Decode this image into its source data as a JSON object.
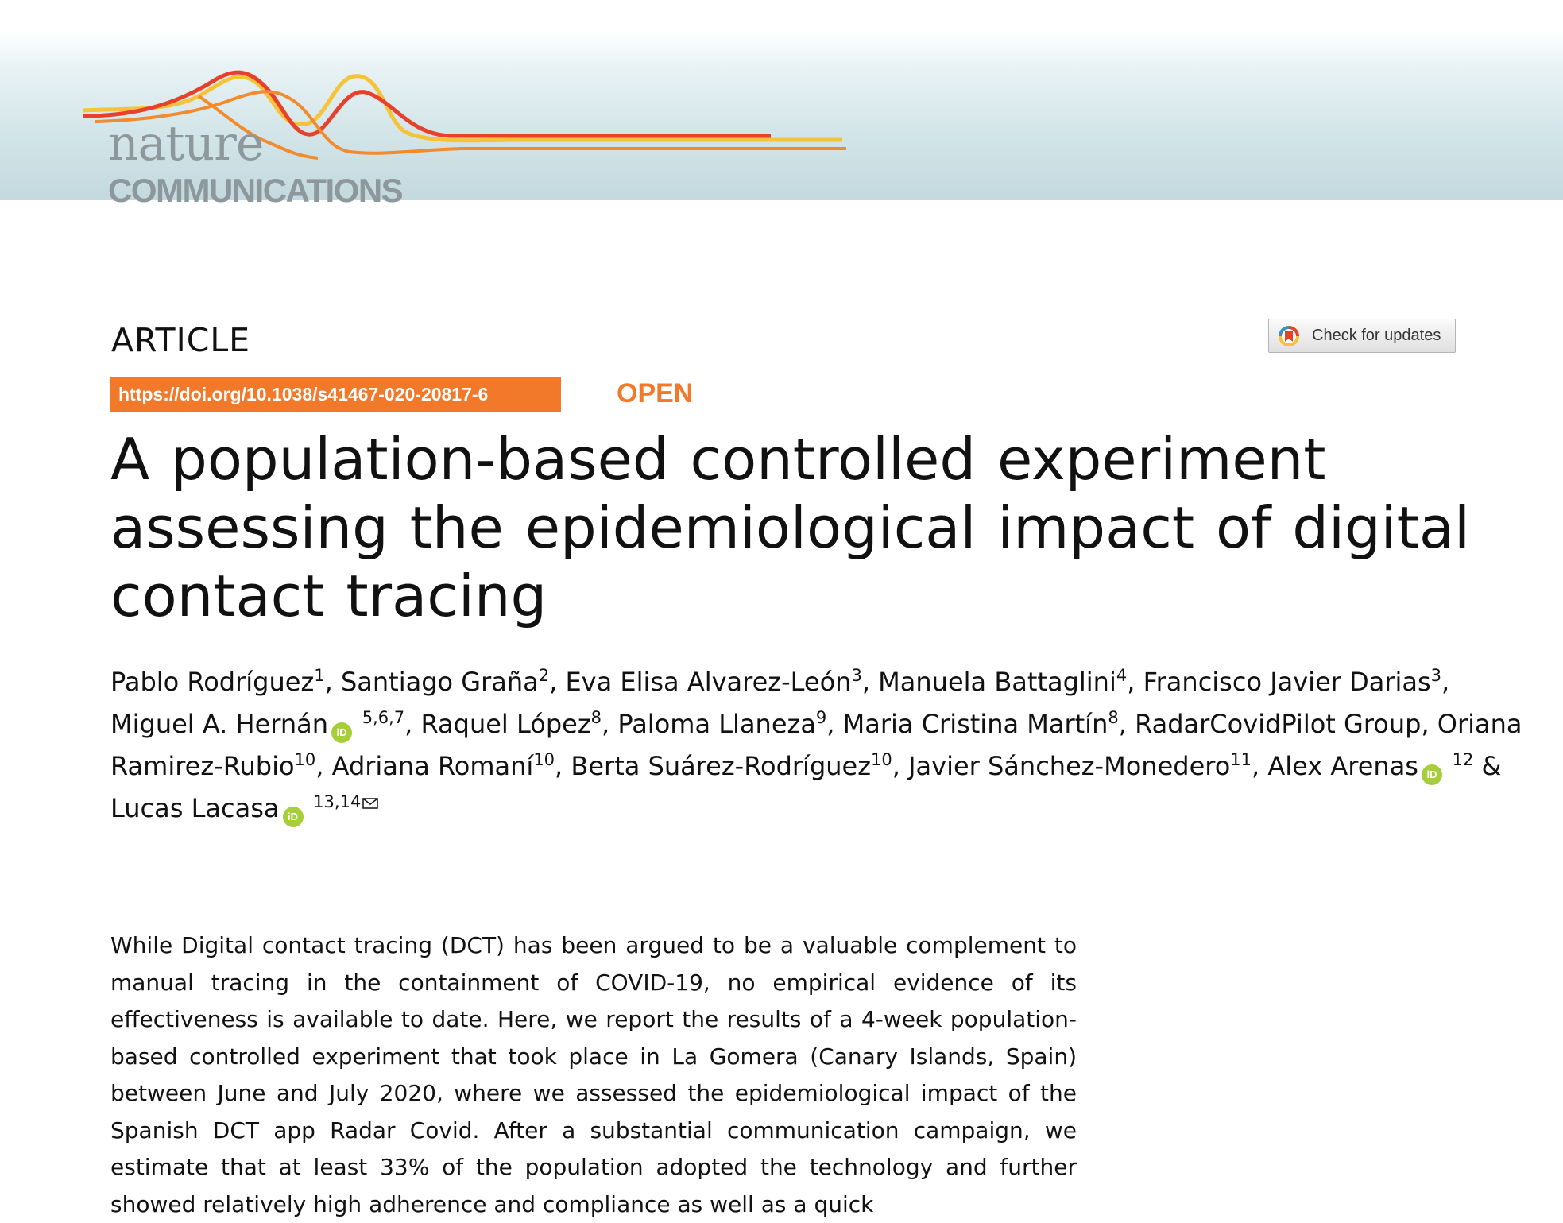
{
  "journal": {
    "name_line1": "nature",
    "name_line2": "COMMUNICATIONS"
  },
  "article_type": "ARTICLE",
  "check_updates_label": "Check for updates",
  "doi": "https://doi.org/10.1038/s41467-020-20817-6",
  "access_label": "OPEN",
  "title": "A population-based controlled experiment assessing the epidemiological impact of digital contact tracing",
  "authors": [
    {
      "name": "Pablo Rodríguez",
      "aff": "1",
      "orcid": false,
      "sep": ", "
    },
    {
      "name": "Santiago Graña",
      "aff": "2",
      "orcid": false,
      "sep": ", "
    },
    {
      "name": "Eva Elisa Alvarez-León",
      "aff": "3",
      "orcid": false,
      "sep": ", "
    },
    {
      "name": "Manuela Battaglini",
      "aff": "4",
      "orcid": false,
      "sep": ", "
    },
    {
      "name": "Francisco Javier Darias",
      "aff": "3",
      "orcid": false,
      "sep": ", "
    },
    {
      "name": "Miguel A. Hernán",
      "aff": "5,6,7",
      "orcid": true,
      "sep": ", "
    },
    {
      "name": "Raquel López",
      "aff": "8",
      "orcid": false,
      "sep": ", "
    },
    {
      "name": "Paloma Llaneza",
      "aff": "9",
      "orcid": false,
      "sep": ", "
    },
    {
      "name": "Maria Cristina Martín",
      "aff": "8",
      "orcid": false,
      "sep": ", "
    },
    {
      "name": "RadarCovidPilot Group",
      "aff": "",
      "orcid": false,
      "sep": ", "
    },
    {
      "name": "Oriana Ramirez-Rubio",
      "aff": "10",
      "orcid": false,
      "sep": ", "
    },
    {
      "name": "Adriana Romaní",
      "aff": "10",
      "orcid": false,
      "sep": ", "
    },
    {
      "name": "Berta Suárez-Rodríguez",
      "aff": "10",
      "orcid": false,
      "sep": ", "
    },
    {
      "name": "Javier Sánchez-Monedero",
      "aff": "11",
      "orcid": false,
      "sep": ", "
    },
    {
      "name": "Alex Arenas",
      "aff": "12",
      "orcid": true,
      "sep": " & "
    },
    {
      "name": "Lucas Lacasa",
      "aff": "13,14",
      "orcid": true,
      "sep": "",
      "corresponding": true
    }
  ],
  "orcid_label": "iD",
  "abstract": "While Digital contact tracing (DCT) has been argued to be a valuable complement to manual tracing in the containment of COVID-19, no empirical evidence of its effectiveness is available to date. Here, we report the results of a 4-week population-based controlled experiment that took place in La Gomera (Canary Islands, Spain) between June and July 2020, where we assessed the epidemiological impact of the Spanish DCT app Radar Covid. After a substantial communication campaign, we estimate that at least 33% of the population adopted the technology and further showed relatively high adherence and compliance as well as a quick"
}
